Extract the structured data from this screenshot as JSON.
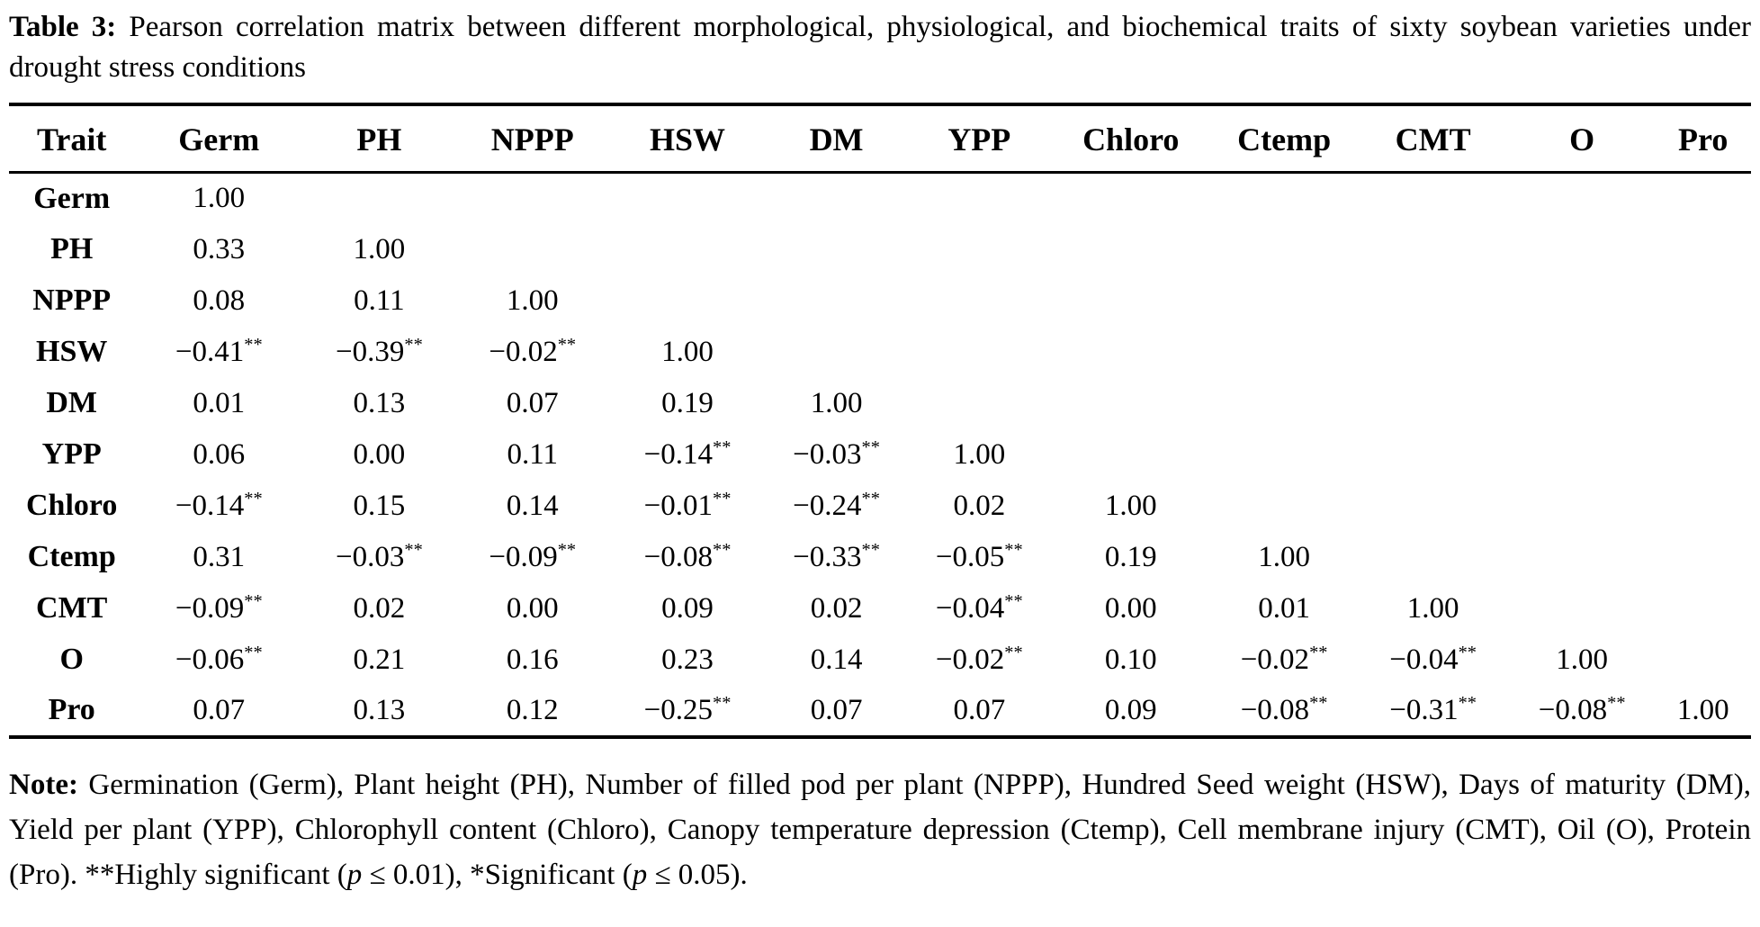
{
  "caption": {
    "segments": [
      {
        "text": "Table 3:",
        "bold": true
      },
      {
        "text": " Pearson correlation matrix between different morphological, physiological, and biochemical traits of sixty soybean varieties under drought stress conditions",
        "bold": false
      }
    ]
  },
  "table": {
    "headers": [
      "Trait",
      "Germ",
      "PH",
      "NPPP",
      "HSW",
      "DM",
      "YPP",
      "Chloro",
      "Ctemp",
      "CMT",
      "O",
      "Pro"
    ],
    "rows": [
      {
        "trait": "Germ",
        "values": [
          "1.00"
        ]
      },
      {
        "trait": "PH",
        "values": [
          "0.33",
          "1.00"
        ]
      },
      {
        "trait": "NPPP",
        "values": [
          "0.08",
          "0.11",
          "1.00"
        ]
      },
      {
        "trait": "HSW",
        "values": [
          "−0.41**",
          "−0.39**",
          "−0.02**",
          "1.00"
        ]
      },
      {
        "trait": "DM",
        "values": [
          "0.01",
          "0.13",
          "0.07",
          "0.19",
          "1.00"
        ]
      },
      {
        "trait": "YPP",
        "values": [
          "0.06",
          "0.00",
          "0.11",
          "−0.14**",
          "−0.03**",
          "1.00"
        ]
      },
      {
        "trait": "Chloro",
        "values": [
          "−0.14**",
          "0.15",
          "0.14",
          "−0.01**",
          "−0.24**",
          "0.02",
          "1.00"
        ]
      },
      {
        "trait": "Ctemp",
        "values": [
          "0.31",
          "−0.03**",
          "−0.09**",
          "−0.08**",
          "−0.33**",
          "−0.05**",
          "0.19",
          "1.00"
        ]
      },
      {
        "trait": "CMT",
        "values": [
          "−0.09**",
          "0.02",
          "0.00",
          "0.09",
          "0.02",
          "−0.04**",
          "0.00",
          "0.01",
          "1.00"
        ]
      },
      {
        "trait": "O",
        "values": [
          "−0.06**",
          "0.21",
          "0.16",
          "0.23",
          "0.14",
          "−0.02**",
          "0.10",
          "−0.02**",
          "−0.04**",
          "1.00"
        ]
      },
      {
        "trait": "Pro",
        "values": [
          "0.07",
          "0.13",
          "0.12",
          "−0.25**",
          "0.07",
          "0.07",
          "0.09",
          "−0.08**",
          "−0.31**",
          "−0.08**",
          "1.00"
        ]
      }
    ],
    "significance_marker": "**"
  },
  "note": {
    "segments": [
      {
        "text": "Note:",
        "bold": true
      },
      {
        "text": " Germination (Germ), Plant height (PH), Number of filled pod per plant (NPPP), Hundred Seed weight (HSW), Days of maturity (DM), Yield per plant (YPP), Chlorophyll content (Chloro), Canopy temperature depression (Ctemp), Cell membrane injury (CMT), Oil (O), Protein (Pro). **Highly significant (",
        "bold": false
      },
      {
        "text": "p",
        "italic": true
      },
      {
        "text": " ≤ 0.01), *Significant (",
        "bold": false
      },
      {
        "text": "p",
        "italic": true
      },
      {
        "text": " ≤ 0.05).",
        "bold": false
      }
    ]
  }
}
